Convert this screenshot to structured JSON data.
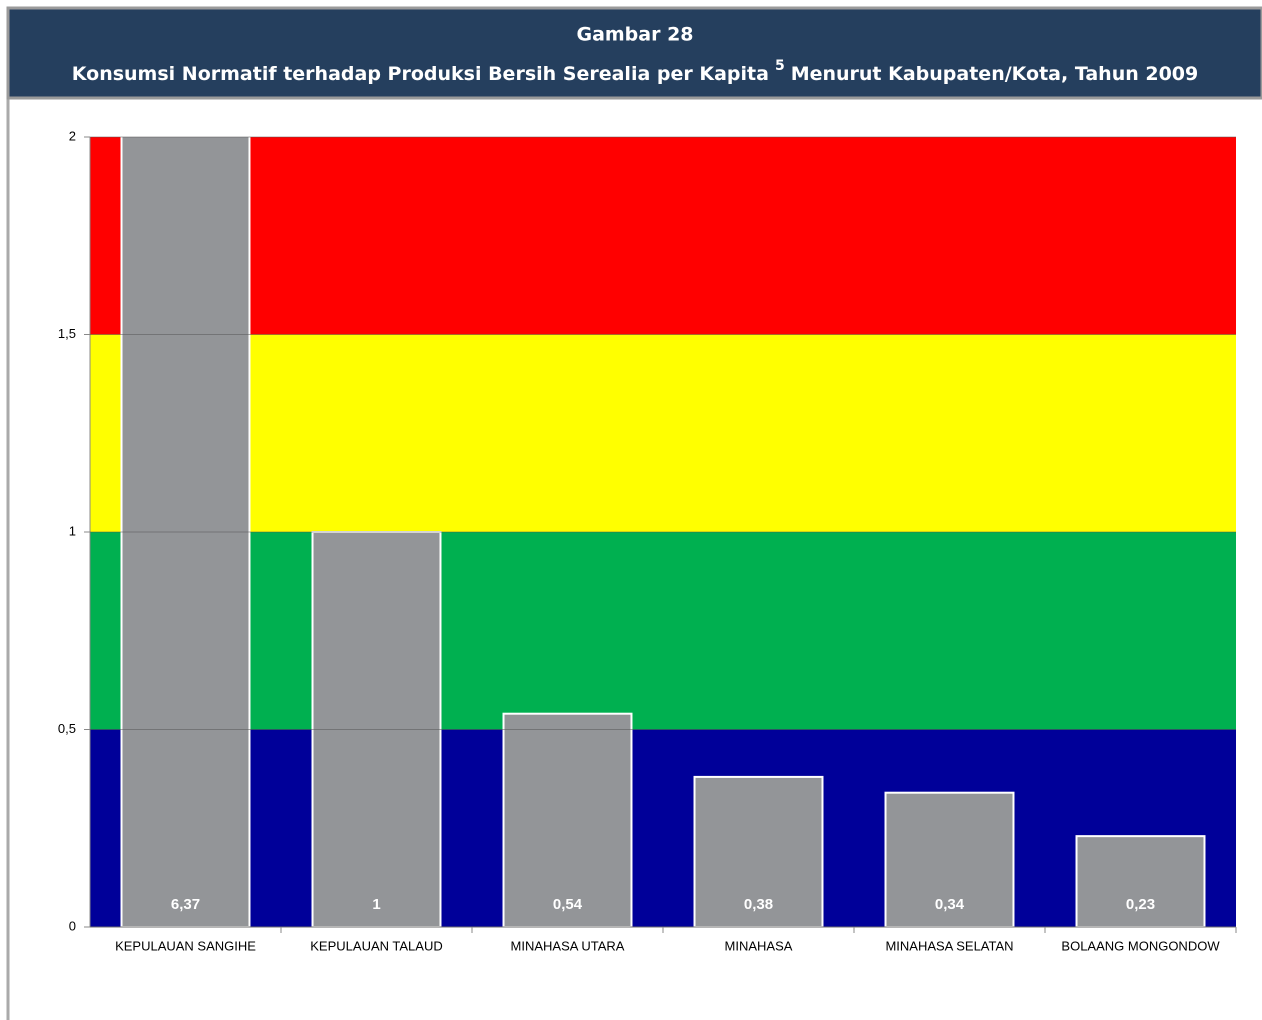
{
  "chart_data": {
    "type": "bar",
    "figure_label": "Gambar 28",
    "title": "Konsumsi Normatif terhadap Produksi Bersih Serealia per Kapita",
    "title_note": "5",
    "title_rest": "Menurut Kabupaten/Kota, Tahun 2009",
    "categories": [
      "KEPULAUAN SANGIHE",
      "KEPULAUAN TALAUD",
      "MINAHASA UTARA",
      "MINAHASA",
      "MINAHASA SELATAN",
      "BOLAANG MONGONDOW"
    ],
    "values": [
      6.37,
      1,
      0.54,
      0.38,
      0.34,
      0.23
    ],
    "value_labels": [
      "6,37",
      "1",
      "0,54",
      "0,38",
      "0,34",
      "0,23"
    ],
    "color": "#939598",
    "bands": [
      {
        "from": 0,
        "to": 0.5,
        "color": "#000099"
      },
      {
        "from": 0.5,
        "to": 1,
        "color": "#00b050"
      },
      {
        "from": 1,
        "to": 1.5,
        "color": "#ffff00"
      },
      {
        "from": 1.5,
        "to": 2,
        "color": "#ff0000"
      }
    ],
    "ylim": [
      0,
      2
    ],
    "yticks": [
      0,
      {
        "value": 0.5,
        "label": "0,5"
      },
      1,
      {
        "value": 1.5,
        "label": "1,5"
      },
      2
    ]
  }
}
